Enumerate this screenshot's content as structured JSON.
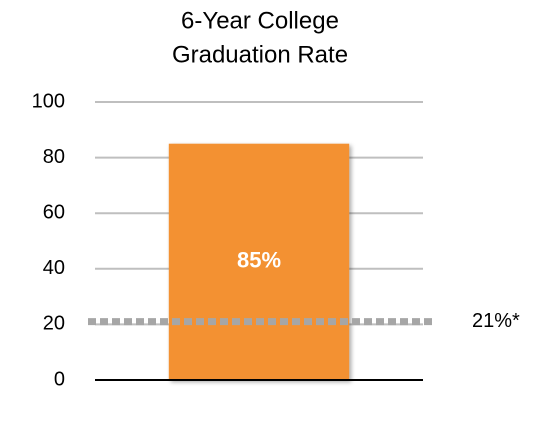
{
  "chart_data": {
    "type": "bar",
    "title": [
      "6-Year College",
      "Graduation Rate"
    ],
    "categories": [
      null
    ],
    "values": [
      85
    ],
    "value_labels": [
      "85%"
    ],
    "color": "#f39130",
    "reference_line": {
      "value": 21,
      "label": "21%*",
      "color": "#a6a6a6"
    },
    "ylim": [
      0,
      100
    ],
    "yticks": [
      0,
      20,
      40,
      60,
      80,
      100
    ],
    "grid": true
  }
}
